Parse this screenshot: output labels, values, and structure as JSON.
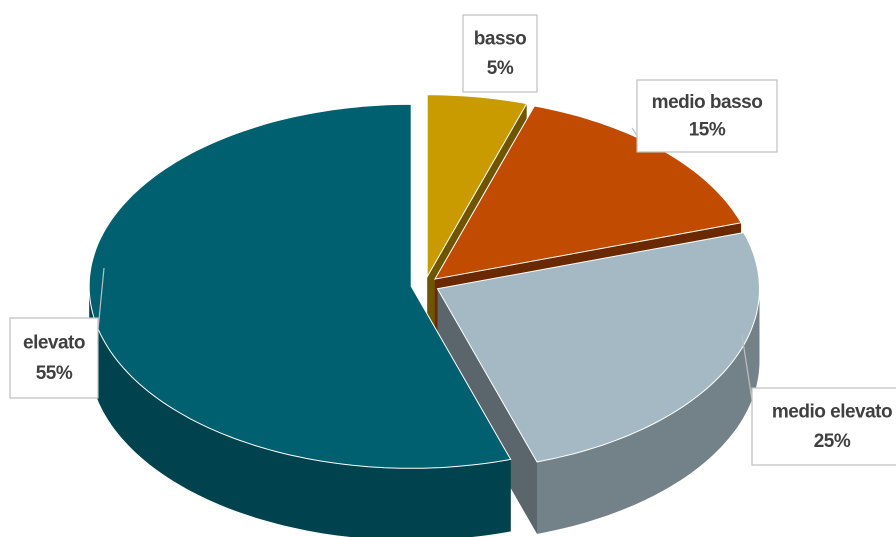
{
  "chart_data": {
    "type": "pie",
    "categories": [
      "basso",
      "medio basso",
      "medio elevato",
      "elevato"
    ],
    "values": [
      5,
      15,
      25,
      55
    ],
    "value_labels": [
      "5%",
      "15%",
      "25%",
      "55%"
    ],
    "colors": [
      "#c99b00",
      "#c14b00",
      "#a4b9c3",
      "#00606f"
    ]
  }
}
